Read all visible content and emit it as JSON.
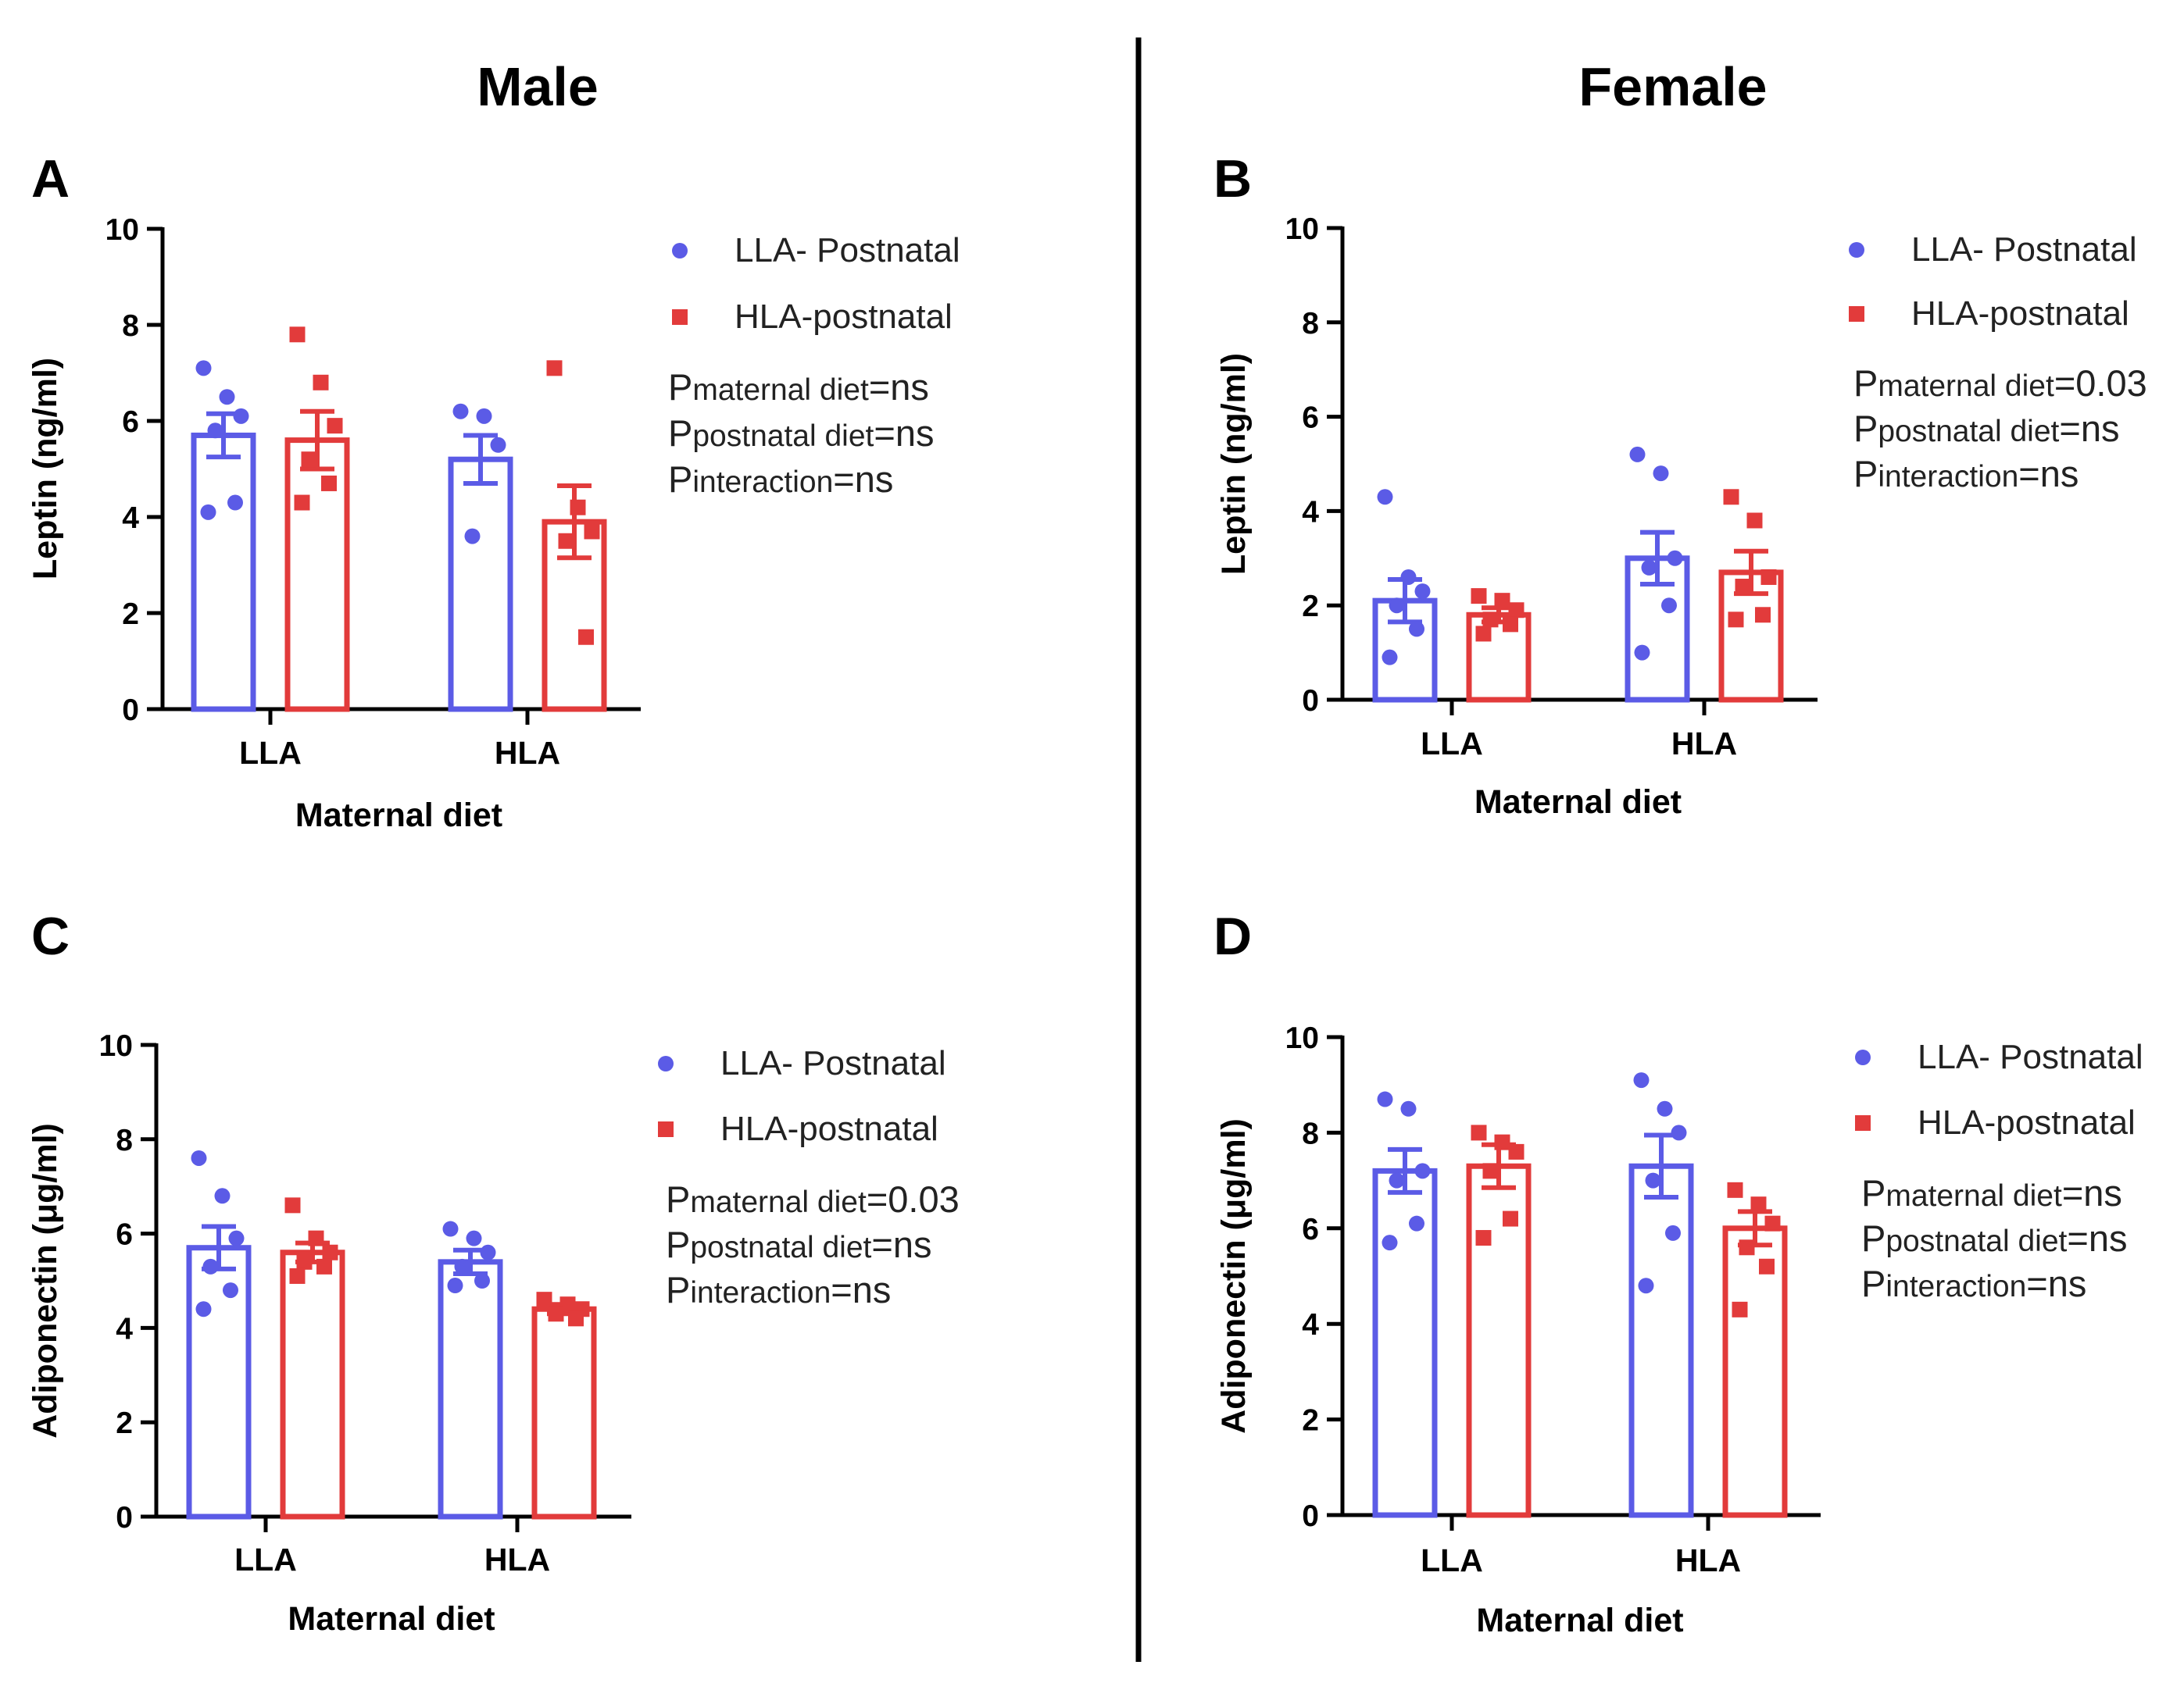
{
  "headings": {
    "male": "Male",
    "female": "Female"
  },
  "colors": {
    "llaBlue": "#5b5be6",
    "hlaRed": "#e23b3b",
    "axis": "#000000",
    "text": "#222222"
  },
  "chart_data": [
    {
      "panel": "A",
      "type": "bar",
      "title": "",
      "ylabel": "Leptin (ng/ml)",
      "xlabel": "Maternal diet",
      "ylim": [
        0,
        10
      ],
      "yticks": [
        0,
        2,
        4,
        6,
        8,
        10
      ],
      "categories": [
        "LLA",
        "HLA"
      ],
      "legend": [
        "LLA- Postnatal",
        "HLA-postnatal"
      ],
      "stats": [
        {
          "p": "P",
          "sub": "maternal diet",
          "val": "=ns"
        },
        {
          "p": "P",
          "sub": "postnatal diet",
          "val": "=ns"
        },
        {
          "p": "P",
          "sub": "interaction",
          "val": "=ns"
        }
      ],
      "series": [
        {
          "name": "LLA- Postnatal",
          "marker": "circle",
          "means": [
            5.7,
            5.2
          ],
          "sem": [
            0.45,
            0.5
          ],
          "points": [
            [
              7.1,
              6.5,
              6.1,
              5.8,
              4.3,
              4.1
            ],
            [
              6.2,
              6.1,
              5.5,
              3.6
            ]
          ]
        },
        {
          "name": "HLA-postnatal",
          "marker": "square",
          "means": [
            5.6,
            3.9
          ],
          "sem": [
            0.6,
            0.75
          ],
          "points": [
            [
              7.8,
              6.8,
              5.9,
              5.2,
              4.7,
              4.3
            ],
            [
              7.1,
              4.2,
              3.7,
              3.5,
              1.5
            ]
          ]
        }
      ]
    },
    {
      "panel": "B",
      "type": "bar",
      "title": "",
      "ylabel": "Leptin (ng/ml)",
      "xlabel": "Maternal diet",
      "ylim": [
        0,
        10
      ],
      "yticks": [
        0,
        2,
        4,
        6,
        8,
        10
      ],
      "categories": [
        "LLA",
        "HLA"
      ],
      "legend": [
        "LLA- Postnatal",
        "HLA-postnatal"
      ],
      "stats": [
        {
          "p": "P",
          "sub": "maternal diet",
          "val": "=0.03"
        },
        {
          "p": "P",
          "sub": "postnatal diet",
          "val": "=ns"
        },
        {
          "p": "P",
          "sub": "interaction",
          "val": "=ns"
        }
      ],
      "series": [
        {
          "name": "LLA- Postnatal",
          "marker": "circle",
          "means": [
            2.1,
            3.0
          ],
          "sem": [
            0.45,
            0.55
          ],
          "points": [
            [
              4.3,
              2.6,
              2.3,
              2.0,
              1.5,
              0.9
            ],
            [
              5.2,
              4.8,
              3.0,
              2.8,
              2.0,
              1.0
            ]
          ]
        },
        {
          "name": "HLA-postnatal",
          "marker": "square",
          "means": [
            1.8,
            2.7
          ],
          "sem": [
            0.15,
            0.45
          ],
          "points": [
            [
              2.2,
              2.1,
              1.9,
              1.7,
              1.6,
              1.4
            ],
            [
              4.3,
              3.8,
              2.6,
              2.4,
              1.8,
              1.7
            ]
          ]
        }
      ]
    },
    {
      "panel": "C",
      "type": "bar",
      "title": "",
      "ylabel": "Adiponectin (μg/ml)",
      "xlabel": "Maternal diet",
      "ylim": [
        0,
        10
      ],
      "yticks": [
        0,
        2,
        4,
        6,
        8,
        10
      ],
      "categories": [
        "LLA",
        "HLA"
      ],
      "legend": [
        "LLA- Postnatal",
        "HLA-postnatal"
      ],
      "stats": [
        {
          "p": "P",
          "sub": "maternal diet",
          "val": "=0.03"
        },
        {
          "p": "P",
          "sub": "postnatal diet",
          "val": "=ns"
        },
        {
          "p": "P",
          "sub": "interaction",
          "val": "=ns"
        }
      ],
      "series": [
        {
          "name": "LLA- Postnatal",
          "marker": "circle",
          "means": [
            5.7,
            5.4
          ],
          "sem": [
            0.45,
            0.25
          ],
          "points": [
            [
              7.6,
              6.8,
              5.9,
              5.3,
              4.8,
              4.4
            ],
            [
              6.1,
              5.9,
              5.6,
              5.3,
              5.0,
              4.9
            ]
          ]
        },
        {
          "name": "HLA-postnatal",
          "marker": "square",
          "means": [
            5.6,
            4.4
          ],
          "sem": [
            0.2,
            0.1
          ],
          "points": [
            [
              6.6,
              5.9,
              5.6,
              5.4,
              5.3,
              5.1
            ],
            [
              4.6,
              4.5,
              4.4,
              4.3,
              4.2
            ]
          ]
        }
      ]
    },
    {
      "panel": "D",
      "type": "bar",
      "title": "",
      "ylabel": "Adiponectin (μg/ml)",
      "xlabel": "Maternal diet",
      "ylim": [
        0,
        10
      ],
      "yticks": [
        0,
        2,
        4,
        6,
        8,
        10
      ],
      "categories": [
        "LLA",
        "HLA"
      ],
      "legend": [
        "LLA- Postnatal",
        "HLA-postnatal"
      ],
      "stats": [
        {
          "p": "P",
          "sub": "maternal diet",
          "val": "=ns"
        },
        {
          "p": "P",
          "sub": "postnatal diet",
          "val": "=ns"
        },
        {
          "p": "P",
          "sub": "interaction",
          "val": "=ns"
        }
      ],
      "series": [
        {
          "name": "LLA- Postnatal",
          "marker": "circle",
          "means": [
            7.2,
            7.3
          ],
          "sem": [
            0.45,
            0.65
          ],
          "points": [
            [
              8.7,
              8.5,
              7.2,
              7.0,
              6.1,
              5.7
            ],
            [
              9.1,
              8.5,
              8.0,
              7.0,
              5.9,
              4.8
            ]
          ]
        },
        {
          "name": "HLA-postnatal",
          "marker": "square",
          "means": [
            7.3,
            6.0
          ],
          "sem": [
            0.45,
            0.35
          ],
          "points": [
            [
              8.0,
              7.8,
              7.6,
              7.2,
              6.2,
              5.8
            ],
            [
              6.8,
              6.5,
              6.1,
              5.6,
              5.2,
              4.3
            ]
          ]
        }
      ]
    }
  ]
}
